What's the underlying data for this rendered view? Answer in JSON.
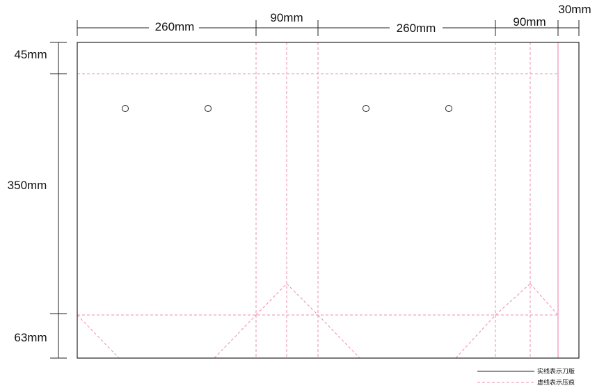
{
  "dimensions": {
    "widths": [
      {
        "label": "260mm",
        "value_mm": 260
      },
      {
        "label": "90mm",
        "value_mm": 90
      },
      {
        "label": "260mm",
        "value_mm": 260
      },
      {
        "label": "90mm",
        "value_mm": 90
      },
      {
        "label": "30mm",
        "value_mm": 30
      }
    ],
    "heights": [
      {
        "label": "45mm",
        "value_mm": 45
      },
      {
        "label": "350mm",
        "value_mm": 350
      },
      {
        "label": "63mm",
        "value_mm": 63
      }
    ]
  },
  "legend": {
    "solid_label": "实线表示刀版",
    "dashed_label": "虚线表示压痕"
  },
  "colors": {
    "cut_line": "#222222",
    "crease_line": "#f08cb4",
    "glue_line": "#f3a6c6",
    "text": "#111111"
  }
}
